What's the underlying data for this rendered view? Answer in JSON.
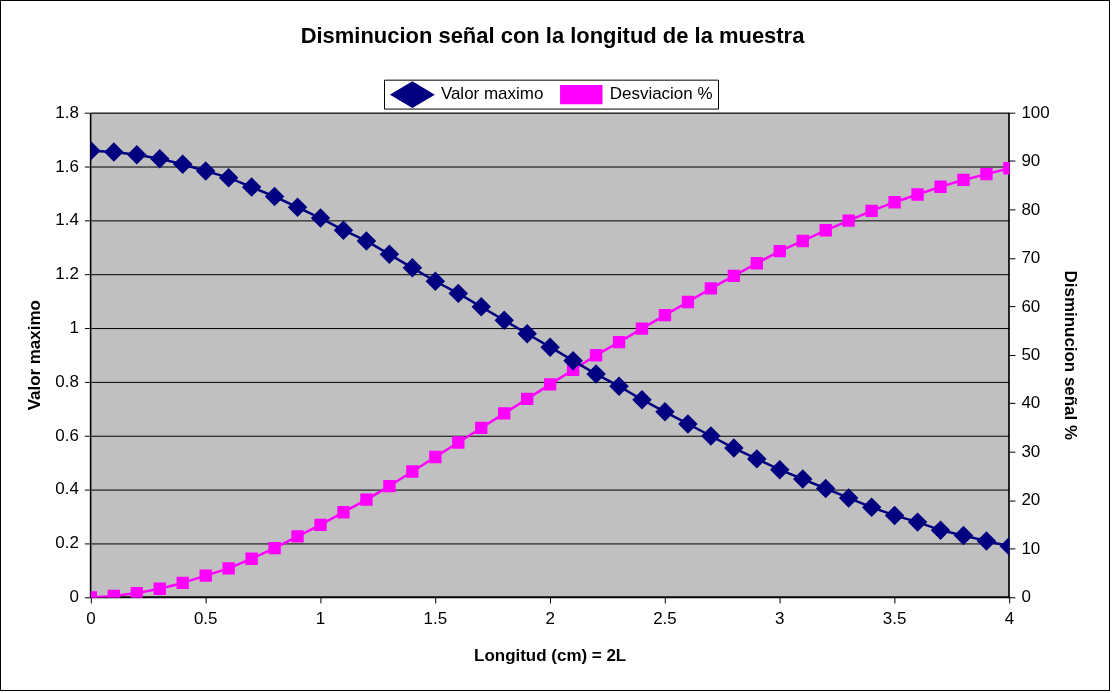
{
  "chart_data": {
    "type": "line",
    "title": "Disminucion señal con la longitud de la muestra",
    "xlabel": "Longitud (cm) = 2L",
    "ylabel": "Valor maximo",
    "y2label": "Disminucion señal %",
    "x": [
      0,
      0.1,
      0.2,
      0.3,
      0.4,
      0.5,
      0.6,
      0.7,
      0.8,
      0.9,
      1.0,
      1.1,
      1.2,
      1.3,
      1.4,
      1.5,
      1.6,
      1.7,
      1.8,
      1.9,
      2.0,
      2.1,
      2.2,
      2.3,
      2.4,
      2.5,
      2.6,
      2.7,
      2.8,
      2.9,
      3.0,
      3.1,
      3.2,
      3.3,
      3.4,
      3.5,
      3.6,
      3.7,
      3.8,
      3.9,
      4.0
    ],
    "series": [
      {
        "name": "Valor maximo",
        "color": "#000080",
        "marker": "diamond",
        "values": [
          1.66,
          1.655,
          1.645,
          1.63,
          1.61,
          1.585,
          1.56,
          1.525,
          1.49,
          1.45,
          1.41,
          1.365,
          1.325,
          1.275,
          1.225,
          1.175,
          1.13,
          1.08,
          1.03,
          0.98,
          0.93,
          0.88,
          0.83,
          0.785,
          0.735,
          0.69,
          0.645,
          0.6,
          0.555,
          0.515,
          0.475,
          0.44,
          0.405,
          0.37,
          0.335,
          0.305,
          0.28,
          0.25,
          0.23,
          0.21,
          0.19
        ]
      },
      {
        "name": "Desviacion %",
        "color": "#ff00ff",
        "marker": "square",
        "axis": "y2",
        "values": [
          0,
          0.3,
          0.9,
          1.8,
          3,
          4.5,
          6,
          8,
          10.2,
          12.6,
          15,
          17.6,
          20.2,
          23,
          26,
          29,
          32,
          35,
          38,
          41,
          44,
          47,
          50,
          52.7,
          55.5,
          58.3,
          61,
          63.8,
          66.4,
          69,
          71.5,
          73.6,
          75.8,
          77.8,
          79.8,
          81.6,
          83.2,
          84.8,
          86.2,
          87.4,
          88.6
        ]
      }
    ],
    "xlim": [
      0,
      4
    ],
    "xticks": [
      0,
      0.5,
      1,
      1.5,
      2,
      2.5,
      3,
      3.5,
      4
    ],
    "ylim": [
      0,
      1.8
    ],
    "yticks": [
      0,
      0.2,
      0.4,
      0.6,
      0.8,
      1,
      1.2,
      1.4,
      1.6,
      1.8
    ],
    "y2lim": [
      0,
      100
    ],
    "y2ticks": [
      0,
      10,
      20,
      30,
      40,
      50,
      60,
      70,
      80,
      90,
      100
    ],
    "grid": "y",
    "legend": "top",
    "line_style": "solid"
  }
}
